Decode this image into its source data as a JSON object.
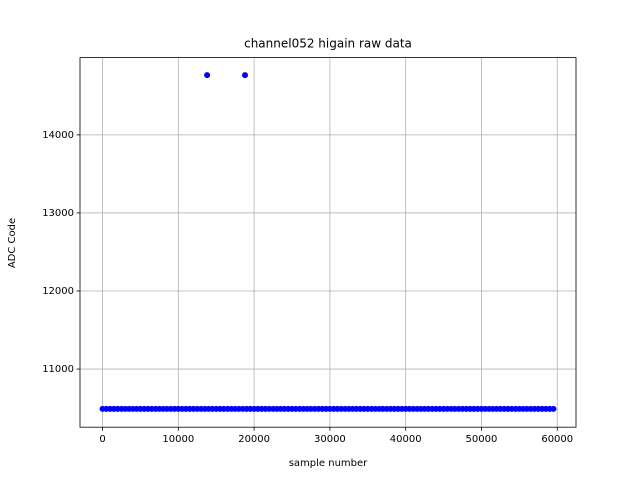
{
  "chart_data": {
    "type": "scatter",
    "title": "channel052 higain raw data",
    "x_label": "sample number",
    "y_label": "ADC Code",
    "x": [
      0,
      500,
      1000,
      1500,
      2000,
      2500,
      3000,
      3500,
      4000,
      4500,
      5000,
      5500,
      6000,
      6500,
      7000,
      7500,
      8000,
      8500,
      9000,
      9500,
      10000,
      10500,
      11000,
      11500,
      12000,
      12500,
      13000,
      13500,
      14000,
      14500,
      15000,
      15500,
      16000,
      16500,
      17000,
      17500,
      18000,
      18500,
      19000,
      19500,
      20000,
      20500,
      21000,
      21500,
      22000,
      22500,
      23000,
      23500,
      24000,
      24500,
      25000,
      25500,
      26000,
      26500,
      27000,
      27500,
      28000,
      28500,
      29000,
      29500,
      30000,
      30500,
      31000,
      31500,
      32000,
      32500,
      33000,
      33500,
      34000,
      34500,
      35000,
      35500,
      36000,
      36500,
      37000,
      37500,
      38000,
      38500,
      39000,
      39500,
      40000,
      40500,
      41000,
      41500,
      42000,
      42500,
      43000,
      43500,
      44000,
      44500,
      45000,
      45500,
      46000,
      46500,
      47000,
      47500,
      48000,
      48500,
      49000,
      49500,
      50000,
      50500,
      51000,
      51500,
      52000,
      52500,
      53000,
      53500,
      54000,
      54500,
      55000,
      55500,
      56000,
      56500,
      57000,
      57500,
      58000,
      58500,
      59000,
      59500,
      13800,
      18800
    ],
    "values": [
      10490,
      10490,
      10490,
      10490,
      10490,
      10490,
      10490,
      10490,
      10490,
      10490,
      10490,
      10490,
      10490,
      10490,
      10490,
      10490,
      10490,
      10490,
      10490,
      10490,
      10490,
      10490,
      10490,
      10490,
      10490,
      10490,
      10490,
      10490,
      10490,
      10490,
      10490,
      10490,
      10490,
      10490,
      10490,
      10490,
      10490,
      10490,
      10490,
      10490,
      10490,
      10490,
      10490,
      10490,
      10490,
      10490,
      10490,
      10490,
      10490,
      10490,
      10490,
      10490,
      10490,
      10490,
      10490,
      10490,
      10490,
      10490,
      10490,
      10490,
      10490,
      10490,
      10490,
      10490,
      10490,
      10490,
      10490,
      10490,
      10490,
      10490,
      10490,
      10490,
      10490,
      10490,
      10490,
      10490,
      10490,
      10490,
      10490,
      10490,
      10490,
      10490,
      10490,
      10490,
      10490,
      10490,
      10490,
      10490,
      10490,
      10490,
      10490,
      10490,
      10490,
      10490,
      10490,
      10490,
      10490,
      10490,
      10490,
      10490,
      10490,
      10490,
      10490,
      10490,
      10490,
      10490,
      10490,
      10490,
      10490,
      10490,
      10490,
      10490,
      10490,
      10490,
      10490,
      10490,
      10490,
      10490,
      10490,
      10490,
      14765,
      14765
    ],
    "color": "#0000ff",
    "xlim": [
      -2975,
      62475
    ],
    "ylim": [
      10255,
      14990
    ],
    "xticks": [
      0,
      10000,
      20000,
      30000,
      40000,
      50000,
      60000
    ],
    "yticks": [
      11000,
      12000,
      13000,
      14000
    ],
    "grid": true
  }
}
